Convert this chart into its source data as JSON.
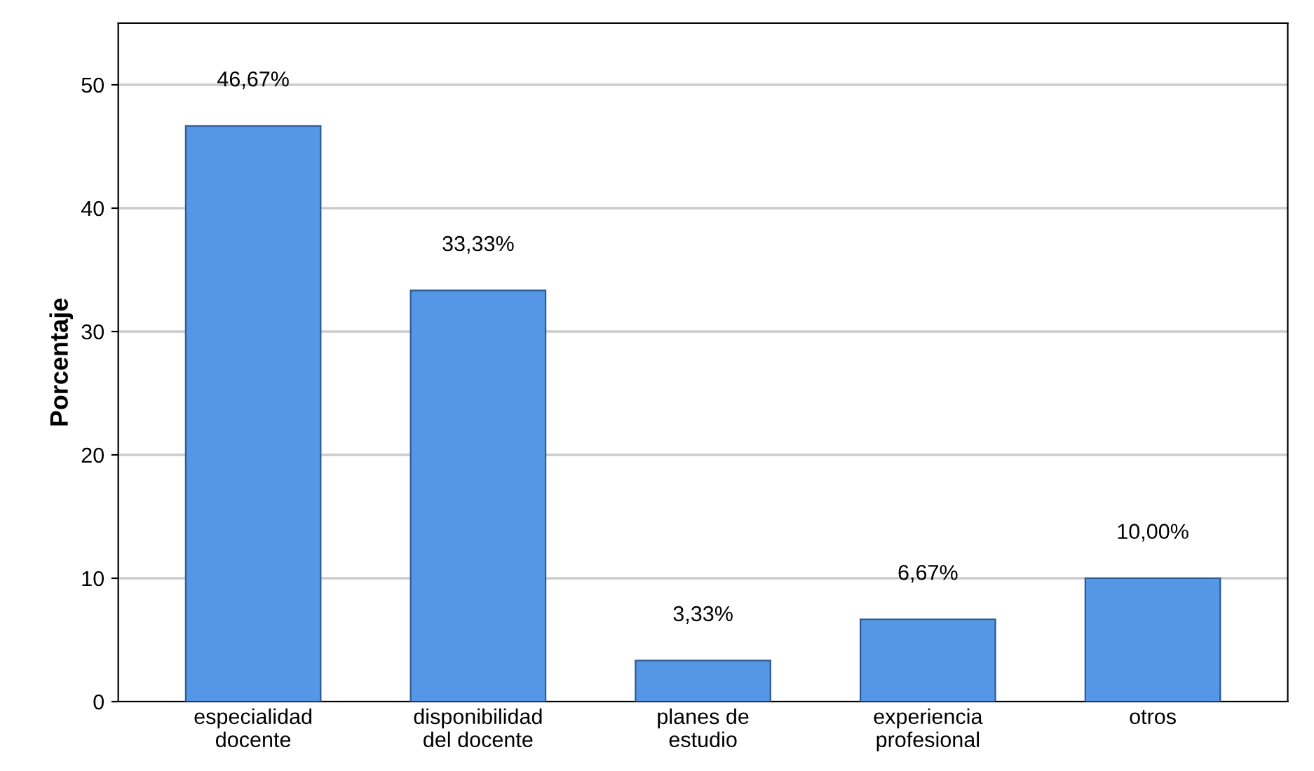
{
  "chart_data": {
    "type": "bar",
    "ylabel": "Porcentaje",
    "categories": [
      "especialidad\ndocente",
      "disponibilidad\ndel docente",
      "planes de\nestudio",
      "experiencia\nprofesional",
      "otros"
    ],
    "values": [
      46.67,
      33.33,
      3.33,
      6.67,
      10.0
    ],
    "value_labels": [
      "46,67%",
      "33,33%",
      "3,33%",
      "6,67%",
      "10,00%"
    ],
    "color": "#5596e6",
    "ylim": [
      0,
      55
    ],
    "yticks": [
      0,
      10,
      20,
      30,
      40,
      50
    ],
    "grid": "y"
  }
}
